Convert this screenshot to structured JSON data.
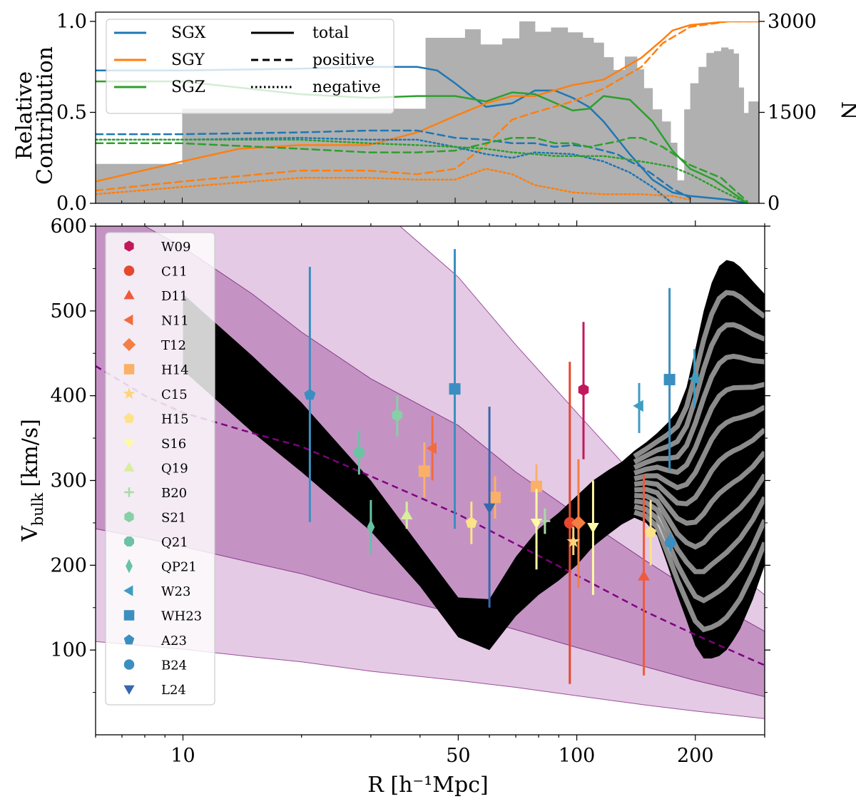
{
  "chart_data": [
    {
      "panel": "top",
      "type": "line",
      "xscale": "log",
      "xlim": [
        6,
        300
      ],
      "ylabel_line1": "Relative",
      "ylabel_line2": "Contribution",
      "ylim": [
        0,
        1.0
      ],
      "yticks": [
        {
          "value": 0,
          "label": "0.0"
        },
        {
          "value": 0.5,
          "label": "0.5"
        },
        {
          "value": 1.0,
          "label": "1.0"
        }
      ],
      "y2label": "N",
      "y2lim": [
        0,
        3000
      ],
      "y2ticks": [
        {
          "value": 0,
          "label": "0"
        },
        {
          "value": 1500,
          "label": "1500"
        },
        {
          "value": 3000,
          "label": "3000"
        }
      ],
      "histogram": {
        "name": "N",
        "color": "#b0b0b0",
        "edges": [
          6,
          10,
          42,
          53,
          58,
          66,
          73,
          80,
          88,
          97,
          106,
          113,
          120,
          127,
          136,
          146,
          152,
          160,
          169,
          178,
          185,
          193,
          200,
          210,
          220,
          230,
          240,
          250,
          258,
          266,
          274,
          282,
          300
        ],
        "counts": [
          650,
          1560,
          2730,
          2870,
          2620,
          2720,
          3000,
          2830,
          2900,
          2820,
          2730,
          2650,
          2410,
          2200,
          2420,
          2210,
          1900,
          1550,
          1350,
          1000,
          380,
          1550,
          1980,
          2250,
          2480,
          2510,
          2570,
          2540,
          2470,
          1910,
          1490,
          1680
        ]
      },
      "legend_series": [
        {
          "name": "SGX",
          "color": "#1f77b4"
        },
        {
          "name": "SGY",
          "color": "#ff7f0e"
        },
        {
          "name": "SGZ",
          "color": "#2ca02c"
        }
      ],
      "legend_styles": [
        {
          "name": "total",
          "dash": "solid"
        },
        {
          "name": "positive",
          "dash": "dashed"
        },
        {
          "name": "negative",
          "dash": "dotted"
        }
      ],
      "series": [
        {
          "name": "SGX total",
          "component": "SGX",
          "style": "total",
          "color": "#1f77b4",
          "x": [
            6,
            10,
            20,
            30,
            40,
            45,
            50,
            55,
            60,
            70,
            80,
            90,
            100,
            110,
            120,
            140,
            160,
            180,
            200,
            250,
            280
          ],
          "y": [
            0.73,
            0.73,
            0.74,
            0.75,
            0.75,
            0.73,
            0.66,
            0.59,
            0.53,
            0.55,
            0.62,
            0.62,
            0.58,
            0.53,
            0.45,
            0.27,
            0.13,
            0.06,
            0.04,
            0.02,
            0.0
          ]
        },
        {
          "name": "SGY total",
          "component": "SGY",
          "style": "total",
          "color": "#ff7f0e",
          "x": [
            6,
            10,
            14,
            20,
            30,
            40,
            50,
            60,
            70,
            80,
            100,
            120,
            150,
            170,
            180,
            200,
            250,
            300
          ],
          "y": [
            0.12,
            0.23,
            0.3,
            0.32,
            0.32,
            0.39,
            0.48,
            0.55,
            0.59,
            0.59,
            0.65,
            0.68,
            0.8,
            0.9,
            0.95,
            0.98,
            1.0,
            1.0
          ]
        },
        {
          "name": "SGZ total",
          "component": "SGZ",
          "style": "total",
          "color": "#2ca02c",
          "x": [
            6,
            10,
            20,
            30,
            40,
            50,
            60,
            70,
            80,
            100,
            110,
            120,
            140,
            160,
            180,
            200,
            230,
            260,
            280
          ],
          "y": [
            0.67,
            0.67,
            0.6,
            0.58,
            0.59,
            0.59,
            0.56,
            0.61,
            0.6,
            0.51,
            0.52,
            0.59,
            0.57,
            0.45,
            0.29,
            0.19,
            0.13,
            0.05,
            0.0
          ]
        },
        {
          "name": "SGX positive",
          "component": "SGX",
          "style": "positive",
          "color": "#1f77b4",
          "x": [
            6,
            10,
            20,
            30,
            40,
            50,
            60,
            70,
            80,
            90,
            100,
            110,
            120,
            130,
            140,
            150,
            160,
            180,
            200
          ],
          "y": [
            0.38,
            0.38,
            0.39,
            0.4,
            0.4,
            0.36,
            0.35,
            0.33,
            0.33,
            0.31,
            0.32,
            0.31,
            0.29,
            0.27,
            0.23,
            0.2,
            0.16,
            0.08,
            0.03
          ]
        },
        {
          "name": "SGY positive",
          "component": "SGY",
          "style": "positive",
          "color": "#ff7f0e",
          "x": [
            6,
            10,
            20,
            30,
            40,
            50,
            60,
            70,
            80,
            100,
            120,
            150,
            170,
            200,
            250,
            300
          ],
          "y": [
            0.07,
            0.12,
            0.18,
            0.18,
            0.16,
            0.19,
            0.32,
            0.46,
            0.5,
            0.56,
            0.63,
            0.75,
            0.88,
            0.97,
            1.0,
            1.0
          ]
        },
        {
          "name": "SGZ positive",
          "component": "SGZ",
          "style": "positive",
          "color": "#2ca02c",
          "x": [
            6,
            10,
            20,
            30,
            40,
            50,
            60,
            70,
            80,
            90,
            100,
            110,
            130,
            140,
            150,
            170,
            200,
            240,
            280
          ],
          "y": [
            0.33,
            0.33,
            0.3,
            0.28,
            0.28,
            0.29,
            0.33,
            0.36,
            0.36,
            0.33,
            0.33,
            0.31,
            0.34,
            0.36,
            0.36,
            0.31,
            0.21,
            0.14,
            0.01
          ]
        },
        {
          "name": "SGX negative",
          "component": "SGX",
          "style": "negative",
          "color": "#1f77b4",
          "x": [
            6,
            10,
            20,
            30,
            40,
            50,
            60,
            70,
            80,
            100,
            120,
            140,
            160,
            180
          ],
          "y": [
            0.35,
            0.35,
            0.36,
            0.35,
            0.35,
            0.31,
            0.27,
            0.25,
            0.28,
            0.27,
            0.23,
            0.17,
            0.09,
            0.0
          ]
        },
        {
          "name": "SGY negative",
          "component": "SGY",
          "style": "negative",
          "color": "#ff7f0e",
          "x": [
            6,
            10,
            20,
            30,
            40,
            50,
            60,
            70,
            80,
            90,
            100,
            120,
            150,
            180,
            200
          ],
          "y": [
            0.05,
            0.09,
            0.14,
            0.14,
            0.13,
            0.13,
            0.19,
            0.16,
            0.1,
            0.08,
            0.06,
            0.05,
            0.05,
            0.04,
            0.02
          ]
        },
        {
          "name": "SGZ negative",
          "component": "SGZ",
          "style": "negative",
          "color": "#2ca02c",
          "x": [
            6,
            10,
            20,
            30,
            40,
            50,
            60,
            70,
            80,
            90,
            100,
            120,
            140,
            160,
            180,
            200,
            240,
            280
          ],
          "y": [
            0.35,
            0.35,
            0.35,
            0.33,
            0.32,
            0.31,
            0.3,
            0.28,
            0.27,
            0.26,
            0.26,
            0.26,
            0.24,
            0.22,
            0.2,
            0.16,
            0.07,
            0.0
          ]
        }
      ]
    },
    {
      "panel": "bottom",
      "type": "scatter",
      "xscale": "log",
      "xlim": [
        6,
        300
      ],
      "xlabel": "R [h⁻¹Mpc]",
      "xticks": [
        {
          "value": 10,
          "label": "10"
        },
        {
          "value": 50,
          "label": "50"
        },
        {
          "value": 100,
          "label": "100"
        },
        {
          "value": 200,
          "label": "200"
        }
      ],
      "ylabel": "V",
      "ylabel_sub": "bulk",
      "ylabel_unit": "[km/s]",
      "ylim": [
        0,
        600
      ],
      "yticks": [
        {
          "value": 100,
          "label": "100"
        },
        {
          "value": 200,
          "label": "200"
        },
        {
          "value": 300,
          "label": "300"
        },
        {
          "value": 400,
          "label": "400"
        },
        {
          "value": 500,
          "label": "500"
        },
        {
          "value": 600,
          "label": "600"
        }
      ],
      "lcdm_expectation": {
        "color": "#800080",
        "x": [
          6,
          8,
          10,
          15,
          20,
          30,
          50,
          70,
          100,
          150,
          200,
          300
        ],
        "median": [
          435,
          400,
          380,
          356,
          340,
          305,
          260,
          225,
          188,
          145,
          118,
          82
        ],
        "band_1sigma_low": [
          243,
          232,
          222,
          203,
          190,
          167,
          143,
          124,
          103,
          80,
          64,
          45
        ],
        "band_1sigma_high": [
          630,
          600,
          575,
          520,
          475,
          420,
          365,
          310,
          260,
          205,
          168,
          122
        ],
        "band_2sigma_low": [
          110,
          105,
          101,
          92,
          86,
          75,
          64,
          56,
          46,
          35,
          28,
          19
        ],
        "band_2sigma_high": [
          700,
          700,
          700,
          700,
          680,
          630,
          540,
          460,
          380,
          290,
          230,
          165
        ]
      },
      "reconstruction_envelope": {
        "color": "#000000",
        "x": [
          10,
          15,
          20,
          30,
          40,
          50,
          60,
          70,
          80,
          90,
          100,
          110,
          120,
          130,
          140,
          150,
          160,
          170,
          180,
          190,
          200,
          210,
          220,
          230,
          240,
          250,
          260,
          280,
          300
        ],
        "upper": [
          520,
          447,
          392,
          300,
          222,
          162,
          160,
          210,
          243,
          262,
          282,
          300,
          312,
          322,
          335,
          345,
          356,
          368,
          382,
          410,
          455,
          500,
          533,
          553,
          560,
          558,
          552,
          535,
          520
        ],
        "lower": [
          430,
          357,
          310,
          240,
          175,
          115,
          100,
          140,
          165,
          182,
          200,
          222,
          236,
          248,
          256,
          250,
          235,
          200,
          165,
          135,
          105,
          90,
          90,
          93,
          100,
          112,
          125,
          160,
          200
        ]
      },
      "legend_entries": [
        {
          "label": "W09",
          "marker": "hexagon",
          "color": "#c2185b"
        },
        {
          "label": "C11",
          "marker": "circle",
          "color": "#e5482e"
        },
        {
          "label": "D11",
          "marker": "triangle-up",
          "color": "#ef5a3c"
        },
        {
          "label": "N11",
          "marker": "triangle-left",
          "color": "#f26b3f"
        },
        {
          "label": "T12",
          "marker": "diamond",
          "color": "#f47e43"
        },
        {
          "label": "H14",
          "marker": "square",
          "color": "#fbb067"
        },
        {
          "label": "C15",
          "marker": "star",
          "color": "#fdd47c"
        },
        {
          "label": "H15",
          "marker": "pentagon",
          "color": "#fde289"
        },
        {
          "label": "S16",
          "marker": "triangle-down",
          "color": "#fef9a4"
        },
        {
          "label": "Q19",
          "marker": "triangle-up",
          "color": "#d7ee9c"
        },
        {
          "label": "B20",
          "marker": "plus",
          "color": "#a7dba4"
        },
        {
          "label": "S21",
          "marker": "hexagon",
          "color": "#87cfa4"
        },
        {
          "label": "Q21",
          "marker": "octagon",
          "color": "#6cc2a4"
        },
        {
          "label": "QP21",
          "marker": "thin-diamond",
          "color": "#66c2a5"
        },
        {
          "label": "W23",
          "marker": "triangle-left",
          "color": "#3f9cc3"
        },
        {
          "label": "WH23",
          "marker": "square",
          "color": "#3a8fc0"
        },
        {
          "label": "A23",
          "marker": "pentagon",
          "color": "#3a8fc0"
        },
        {
          "label": "B24",
          "marker": "circle",
          "color": "#3a8fc0"
        },
        {
          "label": "L24",
          "marker": "triangle-down",
          "color": "#3767ae"
        }
      ],
      "measurements": [
        {
          "label": "W09",
          "x": 104,
          "y": 407,
          "lo": 325,
          "hi": 487
        },
        {
          "label": "C11",
          "x": 96,
          "y": 250,
          "lo": 60,
          "hi": 440
        },
        {
          "label": "D11",
          "x": 148,
          "y": 187,
          "lo": 70,
          "hi": 307
        },
        {
          "label": "N11",
          "x": 43,
          "y": 338,
          "lo": 300,
          "hi": 376
        },
        {
          "label": "T12",
          "x": 101,
          "y": 250,
          "lo": 173,
          "hi": 325
        },
        {
          "label": "H14",
          "x": 41,
          "y": 311,
          "lo": 280,
          "hi": 345
        },
        {
          "label": "H14",
          "x": 62,
          "y": 280,
          "lo": 255,
          "hi": 305
        },
        {
          "label": "H14",
          "x": 79,
          "y": 293,
          "lo": 267,
          "hi": 319
        },
        {
          "label": "C15",
          "x": 98,
          "y": 228,
          "lo": 212,
          "hi": 245
        },
        {
          "label": "H15",
          "x": 54,
          "y": 250,
          "lo": 225,
          "hi": 275
        },
        {
          "label": "H15",
          "x": 154,
          "y": 239,
          "lo": 200,
          "hi": 277
        },
        {
          "label": "S16",
          "x": 79,
          "y": 250,
          "lo": 195,
          "hi": 290
        },
        {
          "label": "S16",
          "x": 110,
          "y": 245,
          "lo": 165,
          "hi": 300
        },
        {
          "label": "Q19",
          "x": 37,
          "y": 259,
          "lo": 243,
          "hi": 275
        },
        {
          "label": "B20",
          "x": 83,
          "y": 252,
          "lo": 237,
          "hi": 267
        },
        {
          "label": "S21",
          "x": 35,
          "y": 377,
          "lo": 352,
          "hi": 400
        },
        {
          "label": "Q21",
          "x": 28,
          "y": 333,
          "lo": 307,
          "hi": 359
        },
        {
          "label": "QP21",
          "x": 30,
          "y": 245,
          "lo": 213,
          "hi": 277
        },
        {
          "label": "W23",
          "x": 144,
          "y": 388,
          "lo": 356,
          "hi": 415
        },
        {
          "label": "W23",
          "x": 199,
          "y": 420,
          "lo": 386,
          "hi": 455
        },
        {
          "label": "WH23",
          "x": 49,
          "y": 408,
          "lo": 243,
          "hi": 573
        },
        {
          "label": "WH23",
          "x": 172,
          "y": 419,
          "lo": 312,
          "hi": 527
        },
        {
          "label": "A23",
          "x": 21,
          "y": 401,
          "lo": 251,
          "hi": 552
        },
        {
          "label": "B24",
          "x": 173,
          "y": 227,
          "lo": 216,
          "hi": 238
        },
        {
          "label": "L24",
          "x": 60,
          "y": 268,
          "lo": 150,
          "hi": 387
        }
      ]
    }
  ]
}
